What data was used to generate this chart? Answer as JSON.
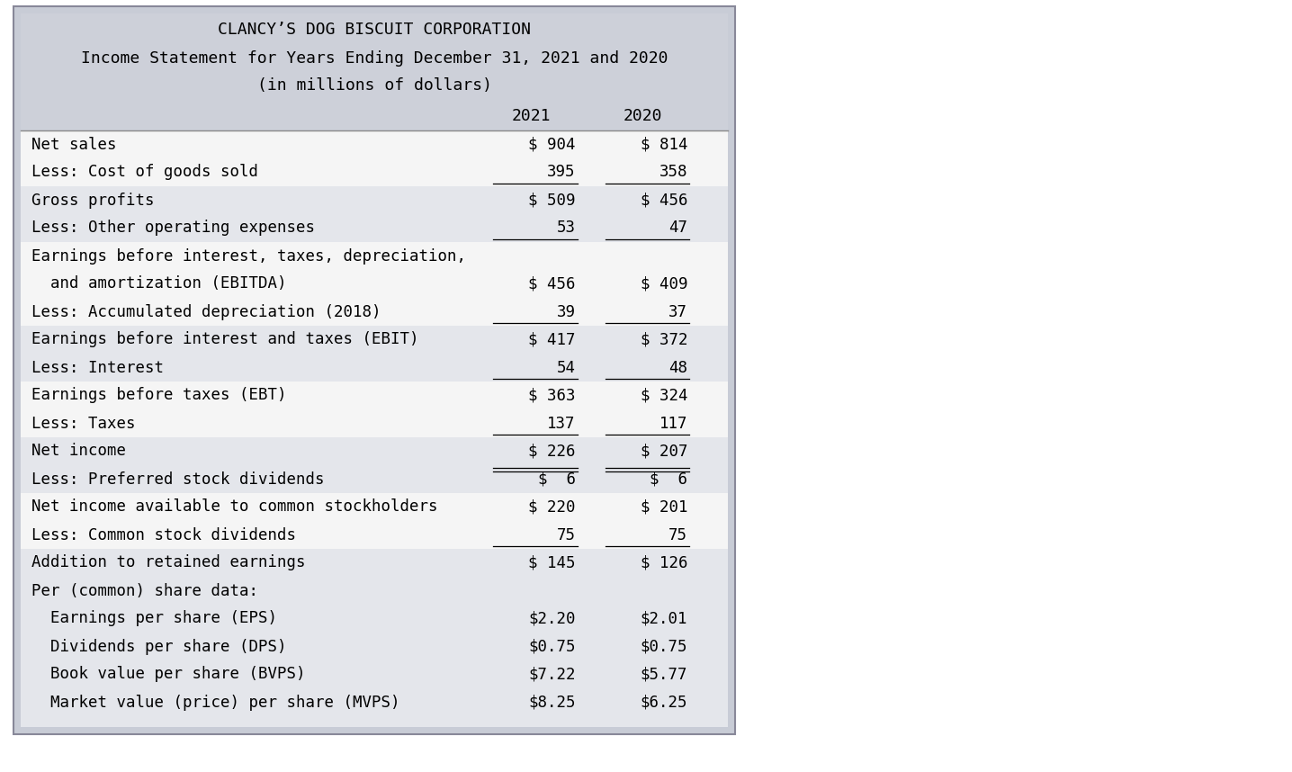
{
  "title_line1": "CLANCY’S DOG BISCUIT CORPORATION",
  "title_line2": "Income Statement for Years Ending December 31, 2021 and 2020",
  "title_line3": "(in millions of dollars)",
  "header_bg": "#cdd0d9",
  "row_bg_light": "#e4e6eb",
  "row_bg_white": "#f5f5f5",
  "outer_bg": "#c8ccd6",
  "font_family": "monospace",
  "rows": [
    {
      "label": "Net sales",
      "col1": "$ 904",
      "col2": "$ 814",
      "bg": "white",
      "underline_below": false,
      "double_underline_above": false
    },
    {
      "label": "Less: Cost of goods sold",
      "col1": "395",
      "col2": "358",
      "bg": "white",
      "underline_below": true,
      "double_underline_above": false
    },
    {
      "label": "Gross profits",
      "col1": "$ 509",
      "col2": "$ 456",
      "bg": "light",
      "underline_below": false,
      "double_underline_above": false
    },
    {
      "label": "Less: Other operating expenses",
      "col1": "53",
      "col2": "47",
      "bg": "light",
      "underline_below": true,
      "double_underline_above": false
    },
    {
      "label": "Earnings before interest, taxes, depreciation,",
      "col1": "",
      "col2": "",
      "bg": "white",
      "underline_below": false,
      "double_underline_above": false
    },
    {
      "label": "  and amortization (EBITDA)",
      "col1": "$ 456",
      "col2": "$ 409",
      "bg": "white",
      "underline_below": false,
      "double_underline_above": false
    },
    {
      "label": "Less: Accumulated depreciation (2018)",
      "col1": "39",
      "col2": "37",
      "bg": "white",
      "underline_below": true,
      "double_underline_above": false
    },
    {
      "label": "Earnings before interest and taxes (EBIT)",
      "col1": "$ 417",
      "col2": "$ 372",
      "bg": "light",
      "underline_below": false,
      "double_underline_above": false
    },
    {
      "label": "Less: Interest",
      "col1": "54",
      "col2": "48",
      "bg": "light",
      "underline_below": true,
      "double_underline_above": false
    },
    {
      "label": "Earnings before taxes (EBT)",
      "col1": "$ 363",
      "col2": "$ 324",
      "bg": "white",
      "underline_below": false,
      "double_underline_above": false
    },
    {
      "label": "Less: Taxes",
      "col1": "137",
      "col2": "117",
      "bg": "white",
      "underline_below": true,
      "double_underline_above": false
    },
    {
      "label": "Net income",
      "col1": "$ 226",
      "col2": "$ 207",
      "bg": "light",
      "underline_below": false,
      "double_underline_above": false
    },
    {
      "label": "Less: Preferred stock dividends",
      "col1": "$  6",
      "col2": "$  6",
      "bg": "light",
      "underline_below": false,
      "double_underline_above": true
    },
    {
      "label": "Net income available to common stockholders",
      "col1": "$ 220",
      "col2": "$ 201",
      "bg": "white",
      "underline_below": false,
      "double_underline_above": false
    },
    {
      "label": "Less: Common stock dividends",
      "col1": "75",
      "col2": "75",
      "bg": "white",
      "underline_below": true,
      "double_underline_above": false
    },
    {
      "label": "Addition to retained earnings",
      "col1": "$ 145",
      "col2": "$ 126",
      "bg": "light",
      "underline_below": false,
      "double_underline_above": false
    },
    {
      "label": "Per (common) share data:",
      "col1": "",
      "col2": "",
      "bg": "light",
      "underline_below": false,
      "double_underline_above": false
    },
    {
      "label": "  Earnings per share (EPS)",
      "col1": "$2.20",
      "col2": "$2.01",
      "bg": "light",
      "underline_below": false,
      "double_underline_above": false
    },
    {
      "label": "  Dividends per share (DPS)",
      "col1": "$0.75",
      "col2": "$0.75",
      "bg": "light",
      "underline_below": false,
      "double_underline_above": false
    },
    {
      "label": "  Book value per share (BVPS)",
      "col1": "$7.22",
      "col2": "$5.77",
      "bg": "light",
      "underline_below": false,
      "double_underline_above": false
    },
    {
      "label": "  Market value (price) per share (MVPS)",
      "col1": "$8.25",
      "col2": "$6.25",
      "bg": "light",
      "underline_below": false,
      "double_underline_above": false
    }
  ]
}
